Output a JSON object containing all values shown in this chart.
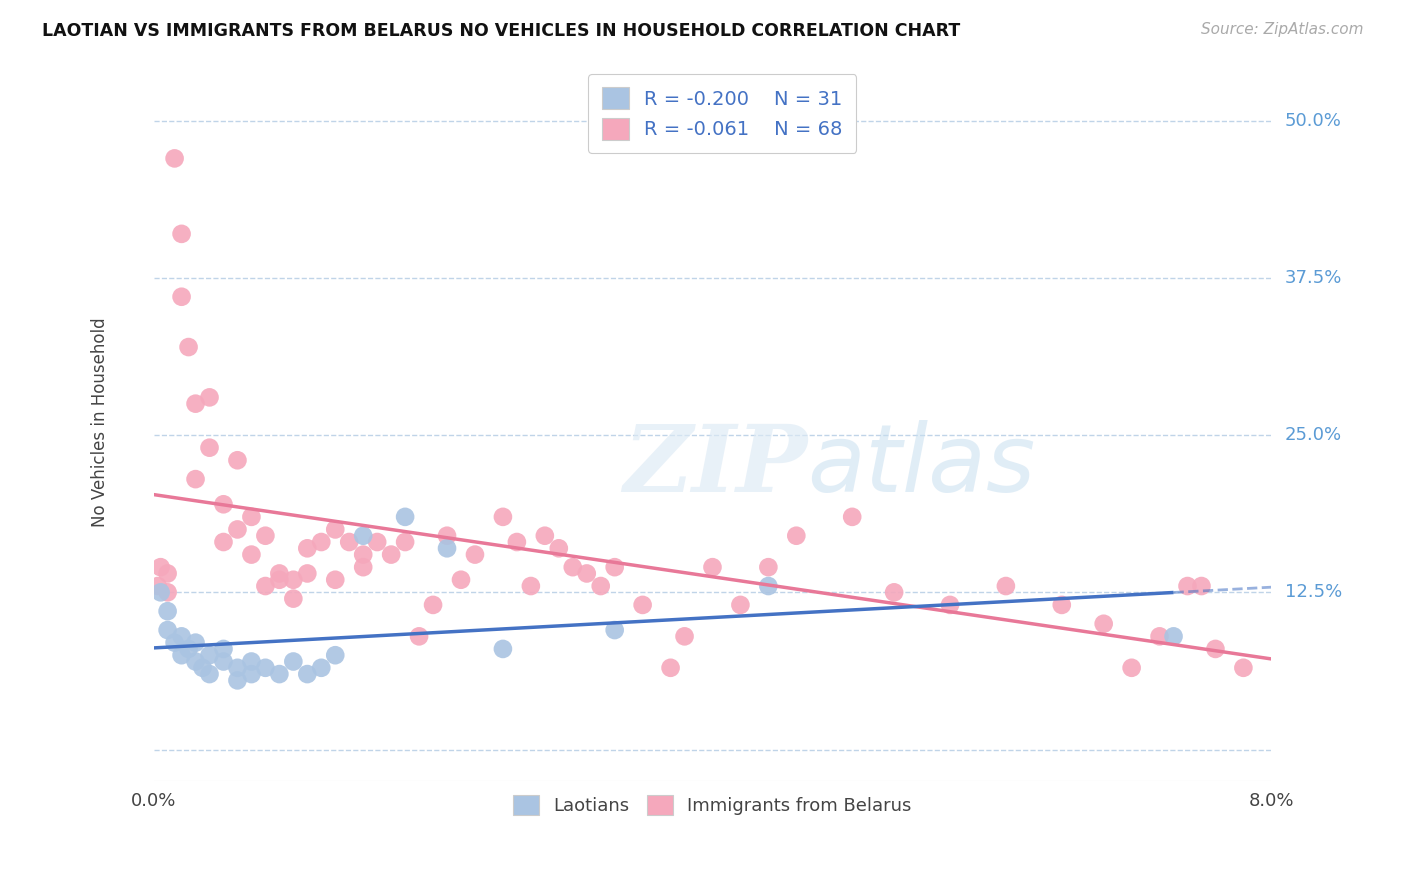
{
  "title": "LAOTIAN VS IMMIGRANTS FROM BELARUS NO VEHICLES IN HOUSEHOLD CORRELATION CHART",
  "source": "Source: ZipAtlas.com",
  "ylabel": "No Vehicles in Household",
  "yticks": [
    0.0,
    0.125,
    0.25,
    0.375,
    0.5
  ],
  "ytick_labels": [
    "",
    "12.5%",
    "25.0%",
    "37.5%",
    "50.0%"
  ],
  "xlim": [
    0.0,
    0.08
  ],
  "ylim": [
    -0.025,
    0.545
  ],
  "legend_labels": [
    "Laotians",
    "Immigrants from Belarus"
  ],
  "laotian_R": -0.2,
  "laotian_N": 31,
  "belarus_R": -0.061,
  "belarus_N": 68,
  "laotian_color": "#aac4e2",
  "belarus_color": "#f5a8bc",
  "laotian_line_color": "#4472c4",
  "belarus_line_color": "#e87898",
  "background_color": "#ffffff",
  "grid_color": "#c0d4e8",
  "watermark_zip": "ZIP",
  "watermark_atlas": "atlas",
  "laotian_x": [
    0.0005,
    0.001,
    0.001,
    0.0015,
    0.002,
    0.002,
    0.0025,
    0.003,
    0.003,
    0.0035,
    0.004,
    0.004,
    0.005,
    0.005,
    0.006,
    0.006,
    0.007,
    0.007,
    0.008,
    0.009,
    0.01,
    0.011,
    0.012,
    0.013,
    0.015,
    0.018,
    0.021,
    0.025,
    0.033,
    0.044,
    0.073
  ],
  "laotian_y": [
    0.125,
    0.11,
    0.095,
    0.085,
    0.09,
    0.075,
    0.08,
    0.07,
    0.085,
    0.065,
    0.075,
    0.06,
    0.07,
    0.08,
    0.055,
    0.065,
    0.06,
    0.07,
    0.065,
    0.06,
    0.07,
    0.06,
    0.065,
    0.075,
    0.17,
    0.185,
    0.16,
    0.08,
    0.095,
    0.13,
    0.09
  ],
  "belarus_x": [
    0.0003,
    0.0005,
    0.001,
    0.001,
    0.0015,
    0.002,
    0.002,
    0.0025,
    0.003,
    0.003,
    0.004,
    0.004,
    0.005,
    0.005,
    0.006,
    0.006,
    0.007,
    0.007,
    0.008,
    0.008,
    0.009,
    0.009,
    0.01,
    0.01,
    0.011,
    0.011,
    0.012,
    0.013,
    0.013,
    0.014,
    0.015,
    0.015,
    0.016,
    0.017,
    0.018,
    0.019,
    0.02,
    0.021,
    0.022,
    0.023,
    0.025,
    0.026,
    0.027,
    0.028,
    0.029,
    0.03,
    0.031,
    0.032,
    0.033,
    0.035,
    0.037,
    0.038,
    0.04,
    0.042,
    0.044,
    0.046,
    0.05,
    0.053,
    0.057,
    0.061,
    0.065,
    0.068,
    0.07,
    0.072,
    0.074,
    0.075,
    0.076,
    0.078
  ],
  "belarus_y": [
    0.13,
    0.145,
    0.125,
    0.14,
    0.47,
    0.41,
    0.36,
    0.32,
    0.275,
    0.215,
    0.24,
    0.28,
    0.195,
    0.165,
    0.175,
    0.23,
    0.155,
    0.185,
    0.17,
    0.13,
    0.135,
    0.14,
    0.12,
    0.135,
    0.14,
    0.16,
    0.165,
    0.135,
    0.175,
    0.165,
    0.155,
    0.145,
    0.165,
    0.155,
    0.165,
    0.09,
    0.115,
    0.17,
    0.135,
    0.155,
    0.185,
    0.165,
    0.13,
    0.17,
    0.16,
    0.145,
    0.14,
    0.13,
    0.145,
    0.115,
    0.065,
    0.09,
    0.145,
    0.115,
    0.145,
    0.17,
    0.185,
    0.125,
    0.115,
    0.13,
    0.115,
    0.1,
    0.065,
    0.09,
    0.13,
    0.13,
    0.08,
    0.065
  ]
}
